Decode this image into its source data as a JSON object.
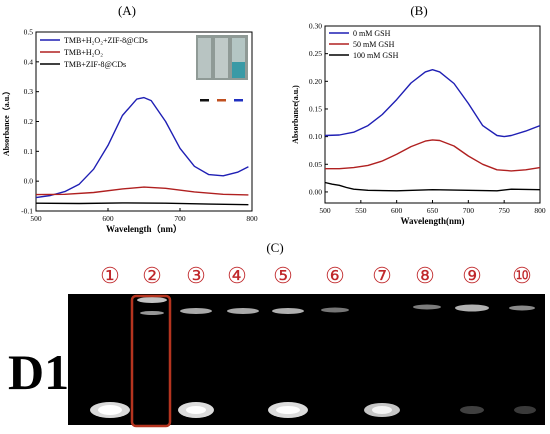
{
  "figure": {
    "panel_labels": [
      "(A)",
      "(B)",
      "(C)"
    ]
  },
  "chart_data": [
    {
      "panel": "(A)",
      "type": "line",
      "xlabel": "Wavelength（nm）",
      "ylabel": "Absorbance（a.u.）",
      "xlim": [
        500,
        800
      ],
      "ylim": [
        -0.1,
        0.5
      ],
      "xticks": [
        "500",
        "600",
        "700",
        "800"
      ],
      "yticks": [
        "-0.1",
        "0.0",
        "0.1",
        "0.2",
        "0.3",
        "0.4",
        "0.5"
      ],
      "grid": false,
      "legend_position": "top-left",
      "series": [
        {
          "name": "TMB+H₂O₂+ZIF-8@CDs",
          "color": "#1f1fb4",
          "x": [
            500,
            520,
            540,
            560,
            580,
            600,
            620,
            640,
            650,
            660,
            680,
            700,
            720,
            740,
            760,
            780,
            795
          ],
          "y": [
            -0.055,
            -0.048,
            -0.035,
            -0.01,
            0.04,
            0.12,
            0.22,
            0.275,
            0.28,
            0.27,
            0.2,
            0.11,
            0.05,
            0.022,
            0.018,
            0.03,
            0.048
          ]
        },
        {
          "name": "TMB+H₂O₂",
          "color": "#b02020",
          "x": [
            500,
            540,
            580,
            620,
            650,
            680,
            720,
            760,
            795
          ],
          "y": [
            -0.045,
            -0.044,
            -0.038,
            -0.026,
            -0.02,
            -0.024,
            -0.036,
            -0.044,
            -0.046
          ]
        },
        {
          "name": "TMB+ZIF-8@CDs",
          "color": "#000000",
          "x": [
            500,
            560,
            620,
            680,
            740,
            795
          ],
          "y": [
            -0.074,
            -0.075,
            -0.073,
            -0.074,
            -0.077,
            -0.079
          ]
        }
      ],
      "inset": {
        "marker_colors": [
          "#111111",
          "#c05020",
          "#2030c0"
        ]
      }
    },
    {
      "panel": "(B)",
      "type": "line",
      "xlabel": "Wavelength(nm)",
      "ylabel": "Absorbance(a.u.)",
      "xlim": [
        500,
        800
      ],
      "ylim": [
        -0.02,
        0.3
      ],
      "xticks": [
        "500",
        "550",
        "600",
        "650",
        "700",
        "750",
        "800"
      ],
      "yticks": [
        "0.00",
        "0.05",
        "0.10",
        "0.15",
        "0.20",
        "0.25",
        "0.30"
      ],
      "grid": false,
      "legend_position": "top-left",
      "series": [
        {
          "name": "0 mM GSH",
          "color": "#1f1fb4",
          "x": [
            500,
            520,
            540,
            560,
            580,
            600,
            620,
            640,
            650,
            660,
            680,
            700,
            720,
            740,
            750,
            760,
            780,
            800
          ],
          "y": [
            0.102,
            0.103,
            0.108,
            0.12,
            0.14,
            0.167,
            0.197,
            0.217,
            0.221,
            0.217,
            0.196,
            0.16,
            0.12,
            0.102,
            0.1,
            0.102,
            0.11,
            0.12
          ]
        },
        {
          "name": "50 mM GSH",
          "color": "#b02020",
          "x": [
            500,
            520,
            540,
            560,
            580,
            600,
            620,
            640,
            650,
            660,
            680,
            700,
            720,
            740,
            760,
            780,
            800
          ],
          "y": [
            0.042,
            0.042,
            0.044,
            0.048,
            0.056,
            0.068,
            0.082,
            0.092,
            0.094,
            0.093,
            0.083,
            0.065,
            0.05,
            0.04,
            0.038,
            0.04,
            0.044
          ]
        },
        {
          "name": "100 mM GSH",
          "color": "#000000",
          "x": [
            500,
            510,
            520,
            530,
            540,
            560,
            600,
            650,
            700,
            740,
            760,
            800
          ],
          "y": [
            0.017,
            0.014,
            0.012,
            0.008,
            0.005,
            0.003,
            0.002,
            0.004,
            0.003,
            0.002,
            0.005,
            0.004
          ]
        }
      ]
    }
  ],
  "gel": {
    "panel": "(C)",
    "row_label": "D1",
    "lanes": [
      "1",
      "2",
      "3",
      "4",
      "5",
      "6",
      "7",
      "8",
      "9",
      "10"
    ],
    "lane_glyphs": [
      "①",
      "②",
      "③",
      "④",
      "⑤",
      "⑥",
      "⑦",
      "⑧",
      "⑨",
      "⑩"
    ],
    "highlighted_lane": "2",
    "lane_number_color": "#c0282b",
    "highlight_color": "#b5341f",
    "gel_background": "#000000"
  }
}
